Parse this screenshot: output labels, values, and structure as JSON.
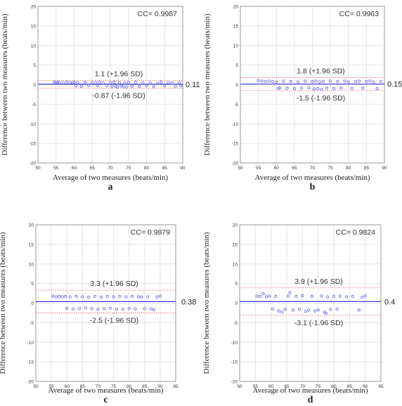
{
  "chart_data": [
    {
      "panel_label": "a",
      "type": "scatter",
      "cc_text": "CC= 0.9987",
      "xlabel": "Average of two measures (beats/min)",
      "ylabel": "Difference between two measures (beats/min)",
      "xlim": [
        50,
        90
      ],
      "ylim": [
        -20,
        20
      ],
      "xticks": [
        50,
        55,
        60,
        65,
        70,
        75,
        80,
        85,
        90
      ],
      "yticks": [
        20,
        15,
        10,
        5,
        0,
        -5,
        -10,
        -15,
        -20
      ],
      "mean_label": "0.11",
      "mean": 0.11,
      "upper_loa": 1.1,
      "lower_loa": -0.87,
      "upper_label": "1.1 (+1.96 SD)",
      "lower_label": "-0.87 (-1.96 SD)",
      "points": [
        [
          54.5,
          0.6
        ],
        [
          55,
          0.5
        ],
        [
          55.5,
          0.6
        ],
        [
          56,
          0.4
        ],
        [
          57,
          0.5
        ],
        [
          58,
          0.6
        ],
        [
          59,
          0.5
        ],
        [
          59.5,
          0.3
        ],
        [
          60,
          0.6
        ],
        [
          60.5,
          -0.3
        ],
        [
          61,
          0.5
        ],
        [
          62,
          -0.4
        ],
        [
          63,
          0.6
        ],
        [
          64,
          -0.2
        ],
        [
          65,
          0.5
        ],
        [
          66,
          0.5
        ],
        [
          66.5,
          -0.3
        ],
        [
          67,
          0.6
        ],
        [
          68,
          0.4
        ],
        [
          69,
          -0.3
        ],
        [
          70,
          0.5
        ],
        [
          70.5,
          -0.5
        ],
        [
          71,
          0.6
        ],
        [
          71.5,
          -0.4
        ],
        [
          72,
          -0.6
        ],
        [
          72.5,
          0.5
        ],
        [
          73,
          -0.3
        ],
        [
          73.5,
          -0.5
        ],
        [
          74,
          0.4
        ],
        [
          74.5,
          -0.6
        ],
        [
          75,
          0.5
        ],
        [
          76,
          -0.4
        ],
        [
          77,
          0.6
        ],
        [
          78,
          -0.4
        ],
        [
          79,
          0.5
        ],
        [
          80,
          -0.3
        ],
        [
          81,
          0.4
        ],
        [
          82,
          -0.5
        ],
        [
          83,
          0.3
        ],
        [
          84,
          0.6
        ],
        [
          85,
          -0.3
        ],
        [
          86,
          0.5
        ],
        [
          87,
          0.4
        ],
        [
          88,
          -0.5
        ],
        [
          89,
          0.5
        ],
        [
          89.5,
          -0.3
        ]
      ]
    },
    {
      "panel_label": "b",
      "type": "scatter",
      "cc_text": "CC= 0.9963",
      "xlabel": "Average of two measures (beats/min)",
      "ylabel": "Difference between two measures (beats/min)",
      "xlim": [
        50,
        90
      ],
      "ylim": [
        -20,
        20
      ],
      "xticks": [
        50,
        55,
        60,
        65,
        70,
        75,
        80,
        85,
        90
      ],
      "yticks": [
        20,
        15,
        10,
        5,
        0,
        -5,
        -10,
        -15,
        -20
      ],
      "mean_label": "0.15",
      "mean": 0.15,
      "upper_loa": 1.8,
      "lower_loa": -1.5,
      "upper_label": "1.8 (+1.96 SD)",
      "lower_label": "-1.5 (-1.96 SD)",
      "points": [
        [
          55,
          1.0
        ],
        [
          56,
          0.9
        ],
        [
          57,
          0.8
        ],
        [
          58,
          0.9
        ],
        [
          59,
          0.8
        ],
        [
          60,
          0.6
        ],
        [
          60.5,
          -1.0
        ],
        [
          61,
          -0.8
        ],
        [
          62,
          0.9
        ],
        [
          63,
          -0.9
        ],
        [
          64,
          0.8
        ],
        [
          65,
          -1.0
        ],
        [
          66,
          0.7
        ],
        [
          67,
          -0.9
        ],
        [
          68,
          0.9
        ],
        [
          69,
          -0.8
        ],
        [
          70,
          0.8
        ],
        [
          70.5,
          -1.1
        ],
        [
          71,
          0.9
        ],
        [
          71.5,
          -1.0
        ],
        [
          72,
          0.7
        ],
        [
          72.5,
          -1.2
        ],
        [
          73,
          0.8
        ],
        [
          74,
          -0.9
        ],
        [
          75,
          0.9
        ],
        [
          76,
          -1.0
        ],
        [
          77,
          0.8
        ],
        [
          78,
          -0.9
        ],
        [
          79,
          0.9
        ],
        [
          80,
          0.7
        ],
        [
          81,
          -1.0
        ],
        [
          82,
          0.8
        ],
        [
          83,
          0.9
        ],
        [
          84,
          -0.9
        ],
        [
          85,
          0.8
        ],
        [
          86,
          0.9
        ],
        [
          87,
          0.7
        ],
        [
          88,
          -1.0
        ],
        [
          89,
          0.8
        ]
      ]
    },
    {
      "panel_label": "c",
      "type": "scatter",
      "cc_text": "CC= 0.9879",
      "xlabel": "Average of two measures (beats/min)",
      "ylabel": "Difference between two measures (beats/min)",
      "xlim": [
        50,
        95
      ],
      "ylim": [
        -20,
        20
      ],
      "xticks": [
        50,
        55,
        60,
        65,
        70,
        75,
        80,
        85,
        90,
        95
      ],
      "yticks": [
        20,
        15,
        10,
        5,
        0,
        -5,
        -10,
        -15,
        -20
      ],
      "mean_label": "0.38",
      "mean": 0.38,
      "upper_loa": 3.3,
      "lower_loa": -2.5,
      "upper_label": "3.3 (+1.96 SD)",
      "lower_label": "-2.5 (-1.96 SD)",
      "points": [
        [
          55.5,
          1.8
        ],
        [
          56.5,
          1.6
        ],
        [
          57.5,
          1.7
        ],
        [
          58.5,
          1.6
        ],
        [
          59.5,
          1.7
        ],
        [
          60,
          -1.3
        ],
        [
          61,
          1.6
        ],
        [
          62,
          -1.5
        ],
        [
          63,
          1.7
        ],
        [
          64,
          -1.4
        ],
        [
          65,
          1.6
        ],
        [
          66,
          -1.2
        ],
        [
          67,
          1.5
        ],
        [
          68,
          -1.4
        ],
        [
          69,
          1.7
        ],
        [
          70,
          -1.6
        ],
        [
          71,
          1.5
        ],
        [
          72,
          -1.4
        ],
        [
          73,
          1.7
        ],
        [
          74,
          -1.3
        ],
        [
          75,
          1.6
        ],
        [
          76,
          -1.5
        ],
        [
          77,
          1.7
        ],
        [
          78,
          -1.6
        ],
        [
          79,
          1.6
        ],
        [
          80,
          -1.4
        ],
        [
          81,
          1.7
        ],
        [
          82,
          -1.5
        ],
        [
          83,
          1.6
        ],
        [
          84,
          1.5
        ],
        [
          85,
          -1.4
        ],
        [
          86,
          1.6
        ],
        [
          87,
          -1.5
        ],
        [
          88,
          -1.7
        ],
        [
          89,
          1.6
        ],
        [
          90,
          1.8
        ]
      ]
    },
    {
      "panel_label": "d",
      "type": "scatter",
      "cc_text": "CC= 0.9824",
      "xlabel": "Average of two measures (beats/min)",
      "ylabel": "Difference between two measures (beats/min)",
      "xlim": [
        50,
        95
      ],
      "ylim": [
        -20,
        20
      ],
      "xticks": [
        50,
        55,
        60,
        65,
        70,
        75,
        80,
        85,
        90,
        95
      ],
      "yticks": [
        20,
        15,
        10,
        5,
        0,
        -5,
        -10,
        -15,
        -20
      ],
      "mean_label": "0.4",
      "mean": 0.4,
      "upper_loa": 3.9,
      "lower_loa": -3.1,
      "upper_label": "3.9 (+1.96 SD)",
      "lower_label": "-3.1 (-1.96 SD)",
      "points": [
        [
          55.5,
          1.8
        ],
        [
          56.5,
          1.7
        ],
        [
          57.5,
          2.4
        ],
        [
          58.5,
          1.6
        ],
        [
          59.5,
          1.8
        ],
        [
          60.5,
          -1.5
        ],
        [
          61.5,
          1.7
        ],
        [
          62.5,
          -2.0
        ],
        [
          63.5,
          -2.3
        ],
        [
          64.5,
          -1.6
        ],
        [
          65.5,
          1.8
        ],
        [
          66,
          2.7
        ],
        [
          67,
          -1.8
        ],
        [
          68,
          1.7
        ],
        [
          69,
          -1.5
        ],
        [
          70,
          1.9
        ],
        [
          71,
          -2.1
        ],
        [
          72,
          -1.8
        ],
        [
          73,
          1.7
        ],
        [
          74,
          -2.0
        ],
        [
          75,
          -1.7
        ],
        [
          76,
          1.8
        ],
        [
          77,
          -2.3
        ],
        [
          77.5,
          -2.6
        ],
        [
          78,
          1.6
        ],
        [
          79,
          -1.6
        ],
        [
          80,
          1.7
        ],
        [
          81,
          -1.5
        ],
        [
          82,
          1.8
        ],
        [
          84,
          1.6
        ],
        [
          86,
          1.7
        ],
        [
          88,
          -1.8
        ],
        [
          89,
          1.5
        ],
        [
          90,
          1.8
        ]
      ]
    }
  ]
}
